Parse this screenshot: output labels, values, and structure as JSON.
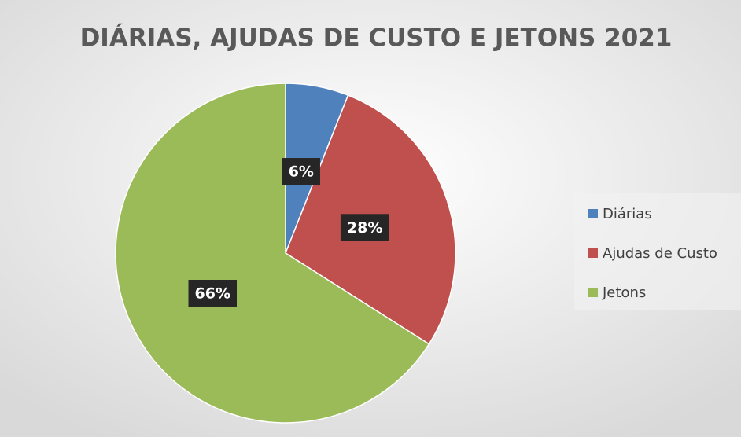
{
  "chart_data": {
    "type": "pie",
    "title": "DIÁRIAS, AJUDAS DE CUSTO E JETONS 2021",
    "categories": [
      "Diárias",
      "Ajudas de Custo",
      "Jetons"
    ],
    "values": [
      6,
      28,
      66
    ],
    "value_labels": [
      "6%",
      "28%",
      "66%"
    ],
    "colors": [
      "#4f81bd",
      "#c0504d",
      "#9bbb59"
    ],
    "legend": "right"
  }
}
